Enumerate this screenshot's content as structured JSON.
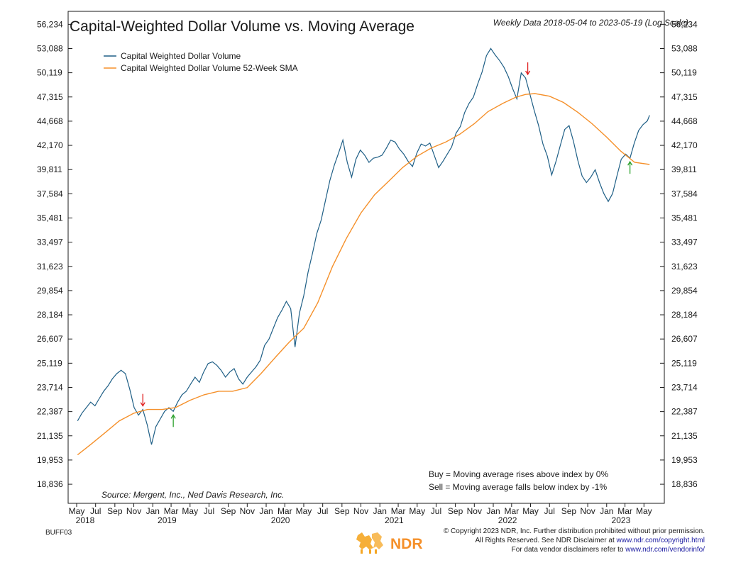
{
  "chart_data": {
    "type": "line",
    "title": "Capital-Weighted Dollar Volume vs. Moving Average",
    "subtitle": "Weekly Data 2018-05-04 to 2023-05-19 (Log Scale)",
    "y_scale": "log",
    "ylim": [
      18000,
      58000
    ],
    "y_ticks": [
      "56,234",
      "53,088",
      "50,119",
      "47,315",
      "44,668",
      "42,170",
      "39,811",
      "37,584",
      "35,481",
      "33,497",
      "31,623",
      "29,854",
      "28,184",
      "26,607",
      "25,119",
      "23,714",
      "22,387",
      "21,135",
      "19,953",
      "18,836"
    ],
    "x_range": [
      "2018-05-01",
      "2023-06-15"
    ],
    "x_month_labels": [
      {
        "label": "May",
        "date": "2018-05-01"
      },
      {
        "label": "Jul",
        "date": "2018-07-01"
      },
      {
        "label": "Sep",
        "date": "2018-09-01"
      },
      {
        "label": "Nov",
        "date": "2018-11-01"
      },
      {
        "label": "Jan",
        "date": "2019-01-01"
      },
      {
        "label": "Mar",
        "date": "2019-03-01"
      },
      {
        "label": "May",
        "date": "2019-05-01"
      },
      {
        "label": "Jul",
        "date": "2019-07-01"
      },
      {
        "label": "Sep",
        "date": "2019-09-01"
      },
      {
        "label": "Nov",
        "date": "2019-11-01"
      },
      {
        "label": "Jan",
        "date": "2020-01-01"
      },
      {
        "label": "Mar",
        "date": "2020-03-01"
      },
      {
        "label": "May",
        "date": "2020-05-01"
      },
      {
        "label": "Jul",
        "date": "2020-07-01"
      },
      {
        "label": "Sep",
        "date": "2020-09-01"
      },
      {
        "label": "Nov",
        "date": "2020-11-01"
      },
      {
        "label": "Jan",
        "date": "2021-01-01"
      },
      {
        "label": "Mar",
        "date": "2021-03-01"
      },
      {
        "label": "May",
        "date": "2021-05-01"
      },
      {
        "label": "Jul",
        "date": "2021-07-01"
      },
      {
        "label": "Sep",
        "date": "2021-09-01"
      },
      {
        "label": "Nov",
        "date": "2021-11-01"
      },
      {
        "label": "Jan",
        "date": "2022-01-01"
      },
      {
        "label": "Mar",
        "date": "2022-03-01"
      },
      {
        "label": "May",
        "date": "2022-05-01"
      },
      {
        "label": "Jul",
        "date": "2022-07-01"
      },
      {
        "label": "Sep",
        "date": "2022-09-01"
      },
      {
        "label": "Nov",
        "date": "2022-11-01"
      },
      {
        "label": "Jan",
        "date": "2023-01-01"
      },
      {
        "label": "Mar",
        "date": "2023-03-01"
      },
      {
        "label": "May",
        "date": "2023-05-01"
      }
    ],
    "x_year_labels": [
      {
        "label": "2018",
        "date": "2018-05-01"
      },
      {
        "label": "2019",
        "date": "2019-01-15"
      },
      {
        "label": "2020",
        "date": "2020-01-15"
      },
      {
        "label": "2021",
        "date": "2021-01-15"
      },
      {
        "label": "2022",
        "date": "2022-01-15"
      },
      {
        "label": "2023",
        "date": "2023-01-15"
      }
    ],
    "series": [
      {
        "name": "Capital Weighted Dollar Volume",
        "color": "#1f5f86",
        "points": [
          [
            "2018-05-04",
            21900
          ],
          [
            "2018-05-18",
            22300
          ],
          [
            "2018-06-01",
            22600
          ],
          [
            "2018-06-15",
            22900
          ],
          [
            "2018-06-29",
            22700
          ],
          [
            "2018-07-13",
            23100
          ],
          [
            "2018-07-27",
            23500
          ],
          [
            "2018-08-10",
            23800
          ],
          [
            "2018-08-24",
            24200
          ],
          [
            "2018-09-07",
            24500
          ],
          [
            "2018-09-21",
            24700
          ],
          [
            "2018-10-05",
            24500
          ],
          [
            "2018-10-19",
            23600
          ],
          [
            "2018-11-02",
            22600
          ],
          [
            "2018-11-16",
            22200
          ],
          [
            "2018-11-30",
            22500
          ],
          [
            "2018-12-14",
            21700
          ],
          [
            "2018-12-28",
            20700
          ],
          [
            "2019-01-11",
            21600
          ],
          [
            "2019-01-25",
            22000
          ],
          [
            "2019-02-08",
            22400
          ],
          [
            "2019-02-22",
            22600
          ],
          [
            "2019-03-08",
            22400
          ],
          [
            "2019-03-22",
            22900
          ],
          [
            "2019-04-05",
            23300
          ],
          [
            "2019-04-19",
            23500
          ],
          [
            "2019-05-03",
            23900
          ],
          [
            "2019-05-17",
            24300
          ],
          [
            "2019-05-31",
            24000
          ],
          [
            "2019-06-14",
            24600
          ],
          [
            "2019-06-28",
            25100
          ],
          [
            "2019-07-12",
            25200
          ],
          [
            "2019-07-26",
            25000
          ],
          [
            "2019-08-09",
            24700
          ],
          [
            "2019-08-23",
            24300
          ],
          [
            "2019-09-06",
            24600
          ],
          [
            "2019-09-20",
            24800
          ],
          [
            "2019-10-04",
            24200
          ],
          [
            "2019-10-18",
            23900
          ],
          [
            "2019-11-01",
            24300
          ],
          [
            "2019-11-15",
            24600
          ],
          [
            "2019-11-29",
            24900
          ],
          [
            "2019-12-13",
            25300
          ],
          [
            "2019-12-27",
            26200
          ],
          [
            "2020-01-10",
            26600
          ],
          [
            "2020-01-24",
            27300
          ],
          [
            "2020-02-07",
            28000
          ],
          [
            "2020-02-21",
            28500
          ],
          [
            "2020-03-06",
            29100
          ],
          [
            "2020-03-20",
            28600
          ],
          [
            "2020-04-03",
            26100
          ],
          [
            "2020-04-17",
            28300
          ],
          [
            "2020-05-01",
            29500
          ],
          [
            "2020-05-15",
            31200
          ],
          [
            "2020-05-29",
            32600
          ],
          [
            "2020-06-12",
            34200
          ],
          [
            "2020-06-26",
            35300
          ],
          [
            "2020-07-10",
            37000
          ],
          [
            "2020-07-24",
            38800
          ],
          [
            "2020-08-07",
            40200
          ],
          [
            "2020-08-21",
            41400
          ],
          [
            "2020-09-04",
            42700
          ],
          [
            "2020-09-18",
            40500
          ],
          [
            "2020-10-02",
            39100
          ],
          [
            "2020-10-16",
            40800
          ],
          [
            "2020-10-30",
            41700
          ],
          [
            "2020-11-13",
            41200
          ],
          [
            "2020-11-27",
            40500
          ],
          [
            "2020-12-11",
            40900
          ],
          [
            "2020-12-25",
            41000
          ],
          [
            "2021-01-08",
            41200
          ],
          [
            "2021-01-22",
            41900
          ],
          [
            "2021-02-05",
            42700
          ],
          [
            "2021-02-19",
            42500
          ],
          [
            "2021-03-05",
            41800
          ],
          [
            "2021-03-19",
            41300
          ],
          [
            "2021-04-02",
            40600
          ],
          [
            "2021-04-16",
            40100
          ],
          [
            "2021-04-30",
            41400
          ],
          [
            "2021-05-14",
            42300
          ],
          [
            "2021-05-28",
            42100
          ],
          [
            "2021-06-11",
            42400
          ],
          [
            "2021-06-25",
            41200
          ],
          [
            "2021-07-09",
            40000
          ],
          [
            "2021-07-23",
            40600
          ],
          [
            "2021-08-06",
            41300
          ],
          [
            "2021-08-20",
            42000
          ],
          [
            "2021-09-03",
            43400
          ],
          [
            "2021-09-17",
            44100
          ],
          [
            "2021-10-01",
            45600
          ],
          [
            "2021-10-15",
            46600
          ],
          [
            "2021-10-29",
            47300
          ],
          [
            "2021-11-12",
            48800
          ],
          [
            "2021-11-26",
            50200
          ],
          [
            "2021-12-10",
            52200
          ],
          [
            "2021-12-24",
            53100
          ],
          [
            "2022-01-07",
            52300
          ],
          [
            "2022-01-21",
            51600
          ],
          [
            "2022-02-04",
            50800
          ],
          [
            "2022-02-18",
            49700
          ],
          [
            "2022-03-04",
            48300
          ],
          [
            "2022-03-18",
            47100
          ],
          [
            "2022-04-01",
            50100
          ],
          [
            "2022-04-15",
            49500
          ],
          [
            "2022-04-29",
            47600
          ],
          [
            "2022-05-13",
            45800
          ],
          [
            "2022-05-27",
            44200
          ],
          [
            "2022-06-10",
            42300
          ],
          [
            "2022-06-24",
            41100
          ],
          [
            "2022-07-08",
            39300
          ],
          [
            "2022-07-22",
            40600
          ],
          [
            "2022-08-05",
            42200
          ],
          [
            "2022-08-19",
            43800
          ],
          [
            "2022-09-02",
            44200
          ],
          [
            "2022-09-16",
            42600
          ],
          [
            "2022-09-30",
            40700
          ],
          [
            "2022-10-14",
            39200
          ],
          [
            "2022-10-28",
            38600
          ],
          [
            "2022-11-11",
            39100
          ],
          [
            "2022-11-25",
            39800
          ],
          [
            "2022-12-09",
            38600
          ],
          [
            "2022-12-23",
            37600
          ],
          [
            "2023-01-06",
            36900
          ],
          [
            "2023-01-20",
            37600
          ],
          [
            "2023-02-03",
            39200
          ],
          [
            "2023-02-17",
            40800
          ],
          [
            "2023-03-03",
            41300
          ],
          [
            "2023-03-17",
            40900
          ],
          [
            "2023-03-31",
            42400
          ],
          [
            "2023-04-14",
            43700
          ],
          [
            "2023-04-28",
            44300
          ],
          [
            "2023-05-12",
            44700
          ],
          [
            "2023-05-19",
            45300
          ]
        ]
      },
      {
        "name": "Capital Weighted Dollar Volume 52-Week SMA",
        "color": "#f5902a",
        "points": [
          [
            "2018-05-04",
            20200
          ],
          [
            "2018-06-15",
            20700
          ],
          [
            "2018-08-01",
            21300
          ],
          [
            "2018-09-15",
            21900
          ],
          [
            "2018-11-01",
            22300
          ],
          [
            "2018-12-15",
            22500
          ],
          [
            "2019-02-01",
            22500
          ],
          [
            "2019-03-15",
            22600
          ],
          [
            "2019-05-01",
            23000
          ],
          [
            "2019-06-15",
            23300
          ],
          [
            "2019-08-01",
            23500
          ],
          [
            "2019-09-15",
            23500
          ],
          [
            "2019-11-01",
            23700
          ],
          [
            "2019-12-15",
            24500
          ],
          [
            "2020-02-01",
            25500
          ],
          [
            "2020-03-15",
            26400
          ],
          [
            "2020-05-01",
            27300
          ],
          [
            "2020-06-15",
            29000
          ],
          [
            "2020-08-01",
            31600
          ],
          [
            "2020-09-15",
            33800
          ],
          [
            "2020-11-01",
            35900
          ],
          [
            "2020-12-15",
            37500
          ],
          [
            "2021-02-01",
            38800
          ],
          [
            "2021-03-15",
            40000
          ],
          [
            "2021-05-01",
            41100
          ],
          [
            "2021-06-15",
            41900
          ],
          [
            "2021-08-01",
            42500
          ],
          [
            "2021-09-15",
            43300
          ],
          [
            "2021-11-01",
            44400
          ],
          [
            "2021-12-15",
            45700
          ],
          [
            "2022-02-01",
            46600
          ],
          [
            "2022-03-15",
            47300
          ],
          [
            "2022-04-15",
            47600
          ],
          [
            "2022-05-15",
            47700
          ],
          [
            "2022-07-01",
            47400
          ],
          [
            "2022-08-15",
            46700
          ],
          [
            "2022-10-01",
            45600
          ],
          [
            "2022-11-15",
            44400
          ],
          [
            "2023-01-01",
            43000
          ],
          [
            "2023-02-15",
            41600
          ],
          [
            "2023-04-01",
            40500
          ],
          [
            "2023-05-19",
            40300
          ]
        ]
      }
    ],
    "signals": [
      {
        "type": "sell",
        "date": "2018-11-30",
        "color": "#e02020"
      },
      {
        "type": "buy",
        "date": "2019-03-08",
        "color": "#2aa02a"
      },
      {
        "type": "sell",
        "date": "2022-04-22",
        "color": "#e02020"
      },
      {
        "type": "buy",
        "date": "2023-03-17",
        "color": "#2aa02a"
      }
    ],
    "legend": [
      "Capital Weighted Dollar Volume",
      "Capital Weighted Dollar Volume 52-Week SMA"
    ],
    "legend_position": "top-left",
    "notes": [
      "Buy = Moving average rises above index by 0%",
      "Sell = Moving average falls below index by -1%"
    ],
    "source": "Source:  Mergent, Inc., Ned Davis Research, Inc."
  },
  "footer": {
    "chart_code": "BUFF03",
    "logo_text": "NDR",
    "line1": "© Copyright 2023 NDR, Inc. Further distribution prohibited without prior permission.",
    "line2_prefix": "All Rights Reserved. See NDR Disclaimer at ",
    "line2_link": "www.ndr.com/copyright.html",
    "line3_prefix": "For data vendor disclaimers refer to ",
    "line3_link": "www.ndr.com/vendorinfo/"
  }
}
